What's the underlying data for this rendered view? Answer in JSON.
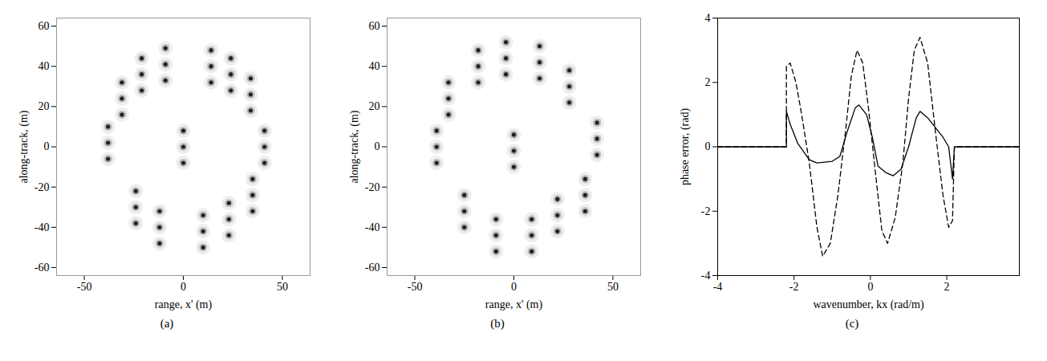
{
  "chart_data": [
    {
      "type": "scatter",
      "caption": "(a)",
      "x_label": "range, x' (m)",
      "y_label": "along-track, (m)",
      "xlim": [
        -64,
        64
      ],
      "xticks": [
        -50,
        0,
        50
      ],
      "ylim": [
        -64,
        64
      ],
      "yticks": [
        -60,
        -40,
        -20,
        0,
        20,
        40,
        60
      ],
      "color": "#222222",
      "x": [
        -38,
        -38,
        -38,
        -31,
        -31,
        -31,
        -21,
        -21,
        -21,
        -9,
        -9,
        -9,
        14,
        14,
        14,
        24,
        24,
        24,
        34,
        34,
        34,
        41,
        41,
        41,
        35,
        35,
        35,
        23,
        23,
        23,
        10,
        10,
        10,
        -12,
        -12,
        -12,
        -24,
        -24,
        -24,
        0,
        0,
        0
      ],
      "y": [
        -6,
        2,
        10,
        16,
        24,
        32,
        28,
        36,
        44,
        33,
        41,
        49,
        32,
        40,
        48,
        28,
        36,
        44,
        18,
        26,
        34,
        -8,
        0,
        8,
        -32,
        -24,
        -16,
        -44,
        -36,
        -28,
        -50,
        -42,
        -34,
        -48,
        -40,
        -32,
        -38,
        -30,
        -22,
        -8,
        0,
        8
      ]
    },
    {
      "type": "scatter",
      "caption": "(b)",
      "x_label": "range, x' (m)",
      "y_label": "along-track, (m)",
      "xlim": [
        -64,
        64
      ],
      "xticks": [
        -50,
        0,
        50
      ],
      "ylim": [
        -64,
        64
      ],
      "yticks": [
        -60,
        -40,
        -20,
        0,
        20,
        40,
        60
      ],
      "color": "#222222",
      "x": [
        -39,
        -39,
        -39,
        -33,
        -33,
        -33,
        -18,
        -18,
        -18,
        -4,
        -4,
        -4,
        13,
        13,
        13,
        28,
        28,
        28,
        42,
        42,
        42,
        36,
        36,
        36,
        22,
        22,
        22,
        9,
        9,
        9,
        -9,
        -9,
        -9,
        -25,
        -25,
        -25,
        0,
        0,
        0
      ],
      "y": [
        -8,
        0,
        8,
        16,
        24,
        32,
        32,
        40,
        48,
        36,
        44,
        52,
        34,
        42,
        50,
        22,
        30,
        38,
        -4,
        4,
        12,
        -32,
        -24,
        -16,
        -42,
        -34,
        -26,
        -52,
        -44,
        -36,
        -52,
        -44,
        -36,
        -40,
        -32,
        -24,
        -10,
        -2,
        6
      ]
    },
    {
      "type": "line",
      "caption": "(c)",
      "x_label": "wavenumber, kx (rad/m)",
      "y_label": "phase error, (rad)",
      "xlim": [
        -4,
        3.9
      ],
      "xticks": [
        -4,
        -2,
        0,
        2
      ],
      "ylim": [
        -4,
        4
      ],
      "yticks": [
        -4,
        -2,
        0,
        2,
        4
      ],
      "series": [
        {
          "color": "#000000",
          "line_style": "solid",
          "x": [
            -4,
            -2.2,
            -2.2,
            -2.1,
            -1.9,
            -1.6,
            -1.4,
            -1.0,
            -0.8,
            -0.6,
            -0.4,
            -0.3,
            -0.1,
            0.05,
            0.2,
            0.4,
            0.6,
            0.8,
            1.0,
            1.2,
            1.3,
            1.5,
            1.7,
            1.9,
            2.05,
            2.15,
            2.2,
            3.9
          ],
          "values": [
            0,
            0,
            1.1,
            0.7,
            0.1,
            -0.4,
            -0.5,
            -0.45,
            -0.3,
            0.5,
            1.2,
            1.3,
            1.0,
            0.3,
            -0.6,
            -0.8,
            -0.9,
            -0.7,
            0.0,
            0.9,
            1.1,
            0.9,
            0.6,
            0.3,
            0.0,
            -1.0,
            0,
            0
          ]
        },
        {
          "color": "#000000",
          "line_style": "dashed",
          "x": [
            -4,
            -2.2,
            -2.2,
            -2.1,
            -1.95,
            -1.8,
            -1.6,
            -1.4,
            -1.25,
            -1.05,
            -0.85,
            -0.65,
            -0.5,
            -0.35,
            -0.2,
            -0.05,
            0.15,
            0.3,
            0.45,
            0.65,
            0.85,
            1.0,
            1.15,
            1.3,
            1.5,
            1.7,
            1.9,
            2.05,
            2.15,
            2.2,
            3.9
          ],
          "values": [
            0,
            0,
            2.5,
            2.6,
            2.0,
            1.0,
            -0.5,
            -2.5,
            -3.4,
            -3.0,
            -1.5,
            0.5,
            2.2,
            3.0,
            2.6,
            1.2,
            -1.0,
            -2.6,
            -3.0,
            -2.2,
            -0.5,
            1.5,
            3.0,
            3.4,
            2.6,
            0.5,
            -1.5,
            -2.5,
            -2.3,
            0,
            0
          ]
        }
      ]
    }
  ]
}
